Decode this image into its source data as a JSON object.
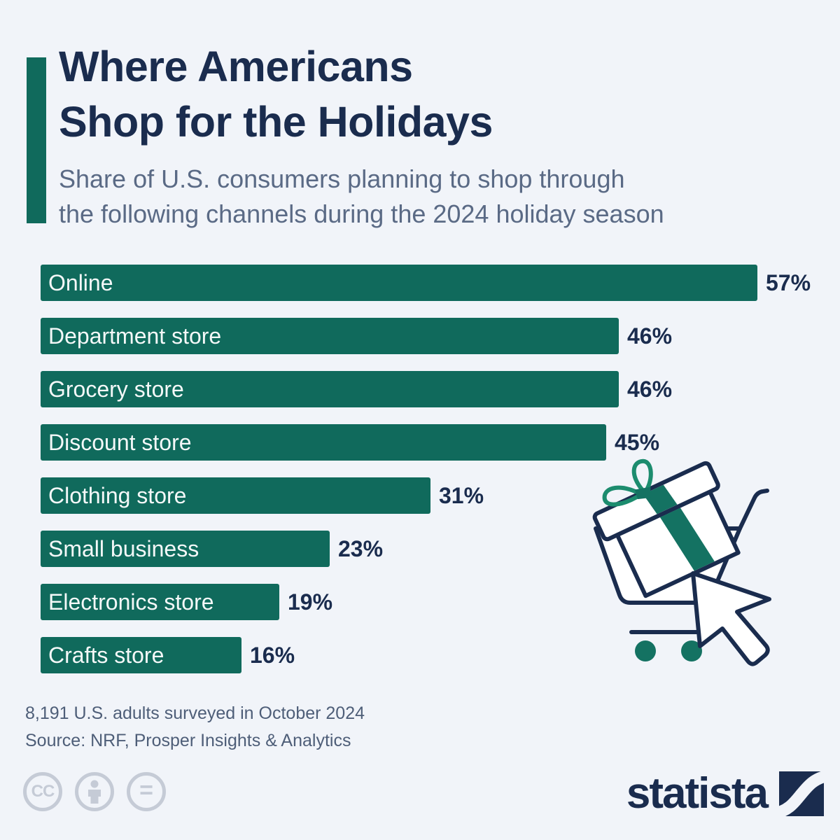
{
  "header": {
    "title_line1": "Where Americans",
    "title_line2": "Shop for the Holidays",
    "subtitle_line1": "Share of U.S. consumers planning to shop through",
    "subtitle_line2": "the following channels during the 2024 holiday season"
  },
  "chart_data": {
    "type": "bar",
    "orientation": "horizontal",
    "title": "Where Americans Shop for the Holidays",
    "categories": [
      "Online",
      "Department store",
      "Grocery store",
      "Discount store",
      "Clothing store",
      "Small business",
      "Electronics store",
      "Crafts store"
    ],
    "values": [
      57,
      46,
      46,
      45,
      31,
      23,
      19,
      16
    ],
    "value_labels": [
      "57%",
      "46%",
      "46%",
      "45%",
      "31%",
      "23%",
      "19%",
      "16%"
    ],
    "unit": "%",
    "xlim": [
      0,
      57
    ],
    "grid": false,
    "legend": false,
    "bar_color": "#106A5C",
    "category_label_position": "inside-left",
    "value_label_position": "outside-right"
  },
  "footer": {
    "note": "8,191 U.S. adults surveyed in October 2024",
    "source": "Source: NRF, Prosper Insights & Analytics"
  },
  "branding": {
    "logo_text": "statista",
    "license_badges": {
      "cc": "CC",
      "equals": "="
    }
  },
  "colors": {
    "background": "#F1F4F9",
    "teal": "#106A5C",
    "bright_teal": "#1C8C6E",
    "navy": "#1A2C4E",
    "subtitle_gray": "#5A6A85",
    "footnote_gray": "#4E5E78",
    "license_gray": "#C5CBD6"
  }
}
